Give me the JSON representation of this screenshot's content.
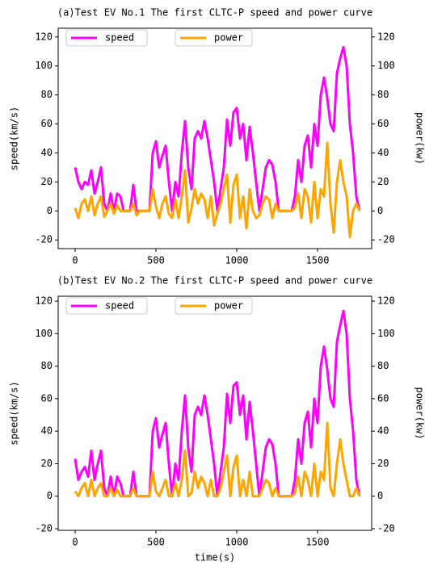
{
  "chart_data": [
    {
      "type": "line",
      "title": "(a)Test EV No.1 The first CLTC-P speed and power curve",
      "y_label": "speed(km/s)",
      "y2_label": "power(kw)",
      "legend": "upper left",
      "x": [
        0,
        20,
        40,
        60,
        80,
        100,
        120,
        140,
        160,
        180,
        200,
        220,
        240,
        260,
        280,
        300,
        320,
        340,
        360,
        380,
        400,
        420,
        440,
        460,
        480,
        500,
        520,
        540,
        560,
        580,
        600,
        620,
        640,
        660,
        680,
        700,
        720,
        740,
        760,
        780,
        800,
        820,
        840,
        860,
        880,
        900,
        920,
        940,
        960,
        980,
        1000,
        1020,
        1040,
        1060,
        1080,
        1100,
        1120,
        1140,
        1160,
        1180,
        1200,
        1220,
        1240,
        1260,
        1280,
        1300,
        1320,
        1340,
        1360,
        1380,
        1400,
        1420,
        1440,
        1460,
        1480,
        1500,
        1520,
        1540,
        1560,
        1580,
        1600,
        1620,
        1640,
        1660,
        1680,
        1700,
        1720,
        1740,
        1760
      ],
      "series": [
        {
          "name": "speed",
          "color": "#ff00ff",
          "values": [
            30,
            20,
            15,
            20,
            18,
            28,
            12,
            20,
            30,
            5,
            0,
            12,
            0,
            12,
            10,
            0,
            0,
            0,
            18,
            0,
            0,
            0,
            0,
            0,
            40,
            48,
            30,
            38,
            45,
            20,
            0,
            20,
            10,
            40,
            62,
            30,
            15,
            50,
            55,
            50,
            62,
            50,
            35,
            20,
            0,
            15,
            30,
            63,
            45,
            68,
            71,
            50,
            60,
            35,
            58,
            40,
            20,
            0,
            15,
            30,
            35,
            32,
            20,
            0,
            0,
            0,
            0,
            0,
            10,
            35,
            20,
            45,
            52,
            30,
            60,
            45,
            80,
            92,
            78,
            60,
            55,
            95,
            105,
            113,
            100,
            60,
            40,
            10,
            0
          ]
        },
        {
          "name": "power",
          "color": "#ffa500",
          "axis": "y2",
          "values": [
            2,
            -5,
            5,
            8,
            0,
            10,
            -3,
            5,
            10,
            -4,
            0,
            5,
            -2,
            4,
            0,
            0,
            0,
            0,
            5,
            -3,
            0,
            0,
            0,
            0,
            15,
            3,
            -5,
            5,
            10,
            -2,
            -5,
            8,
            -5,
            10,
            28,
            -8,
            2,
            15,
            5,
            12,
            8,
            -5,
            10,
            -10,
            -2,
            5,
            15,
            25,
            -8,
            18,
            25,
            -5,
            10,
            -12,
            15,
            0,
            -5,
            -3,
            5,
            10,
            8,
            -5,
            5,
            0,
            0,
            0,
            0,
            0,
            2,
            12,
            -5,
            15,
            10,
            -8,
            20,
            -5,
            15,
            10,
            47,
            5,
            -15,
            20,
            35,
            20,
            10,
            -18,
            0,
            5,
            0
          ]
        }
      ],
      "xlim": [
        -105,
        1835
      ],
      "xticks": [
        0,
        500,
        1000,
        1500
      ],
      "ylim": [
        -26,
        126
      ],
      "yticks": [
        -20,
        0,
        20,
        40,
        60,
        80,
        100,
        120
      ],
      "y2lim": [
        -26,
        126
      ],
      "y2ticks": [
        -20,
        0,
        20,
        40,
        60,
        80,
        100,
        120
      ]
    },
    {
      "type": "line",
      "title": "(b)Test EV No.2 The first CLTC-P speed and power curve",
      "x_label": "time(s)",
      "y_label": "speed(km/s)",
      "y2_label": "power(kw)",
      "legend": "upper left",
      "x": [
        0,
        20,
        40,
        60,
        80,
        100,
        120,
        140,
        160,
        180,
        200,
        220,
        240,
        260,
        280,
        300,
        320,
        340,
        360,
        380,
        400,
        420,
        440,
        460,
        480,
        500,
        520,
        540,
        560,
        580,
        600,
        620,
        640,
        660,
        680,
        700,
        720,
        740,
        760,
        780,
        800,
        820,
        840,
        860,
        880,
        900,
        920,
        940,
        960,
        980,
        1000,
        1020,
        1040,
        1060,
        1080,
        1100,
        1120,
        1140,
        1160,
        1180,
        1200,
        1220,
        1240,
        1260,
        1280,
        1300,
        1320,
        1340,
        1360,
        1380,
        1400,
        1420,
        1440,
        1460,
        1480,
        1500,
        1520,
        1540,
        1560,
        1580,
        1600,
        1620,
        1640,
        1660,
        1680,
        1700,
        1720,
        1740,
        1760
      ],
      "series": [
        {
          "name": "speed",
          "color": "#ff00ff",
          "values": [
            23,
            10,
            15,
            18,
            12,
            28,
            10,
            20,
            28,
            5,
            0,
            12,
            0,
            12,
            8,
            0,
            0,
            0,
            15,
            0,
            0,
            0,
            0,
            0,
            40,
            48,
            30,
            38,
            45,
            20,
            0,
            20,
            10,
            40,
            62,
            30,
            15,
            50,
            55,
            50,
            62,
            50,
            35,
            20,
            0,
            15,
            30,
            63,
            45,
            68,
            70,
            50,
            62,
            35,
            58,
            40,
            20,
            0,
            15,
            30,
            35,
            32,
            20,
            0,
            0,
            0,
            0,
            0,
            10,
            35,
            20,
            45,
            52,
            30,
            60,
            45,
            80,
            92,
            78,
            60,
            55,
            95,
            105,
            114,
            100,
            60,
            40,
            10,
            0
          ]
        },
        {
          "name": "power",
          "color": "#ffa500",
          "axis": "y2",
          "values": [
            3,
            0,
            5,
            8,
            0,
            10,
            0,
            5,
            8,
            0,
            0,
            5,
            0,
            4,
            0,
            0,
            0,
            0,
            5,
            0,
            0,
            0,
            0,
            0,
            15,
            3,
            0,
            5,
            10,
            0,
            0,
            8,
            0,
            10,
            28,
            0,
            2,
            15,
            5,
            12,
            8,
            0,
            10,
            0,
            0,
            5,
            15,
            25,
            0,
            18,
            25,
            0,
            10,
            0,
            15,
            0,
            0,
            0,
            5,
            10,
            8,
            0,
            5,
            0,
            0,
            0,
            0,
            0,
            2,
            12,
            0,
            15,
            10,
            0,
            20,
            0,
            15,
            10,
            45,
            5,
            0,
            20,
            35,
            20,
            10,
            0,
            0,
            5,
            0
          ]
        }
      ],
      "xlim": [
        -105,
        1835
      ],
      "xticks": [
        0,
        500,
        1000,
        1500
      ],
      "ylim": [
        -21,
        123
      ],
      "yticks": [
        -20,
        0,
        20,
        40,
        60,
        80,
        100,
        120
      ],
      "y2lim": [
        -21,
        123
      ],
      "y2ticks": [
        -20,
        0,
        20,
        40,
        60,
        80,
        100,
        120
      ]
    }
  ]
}
